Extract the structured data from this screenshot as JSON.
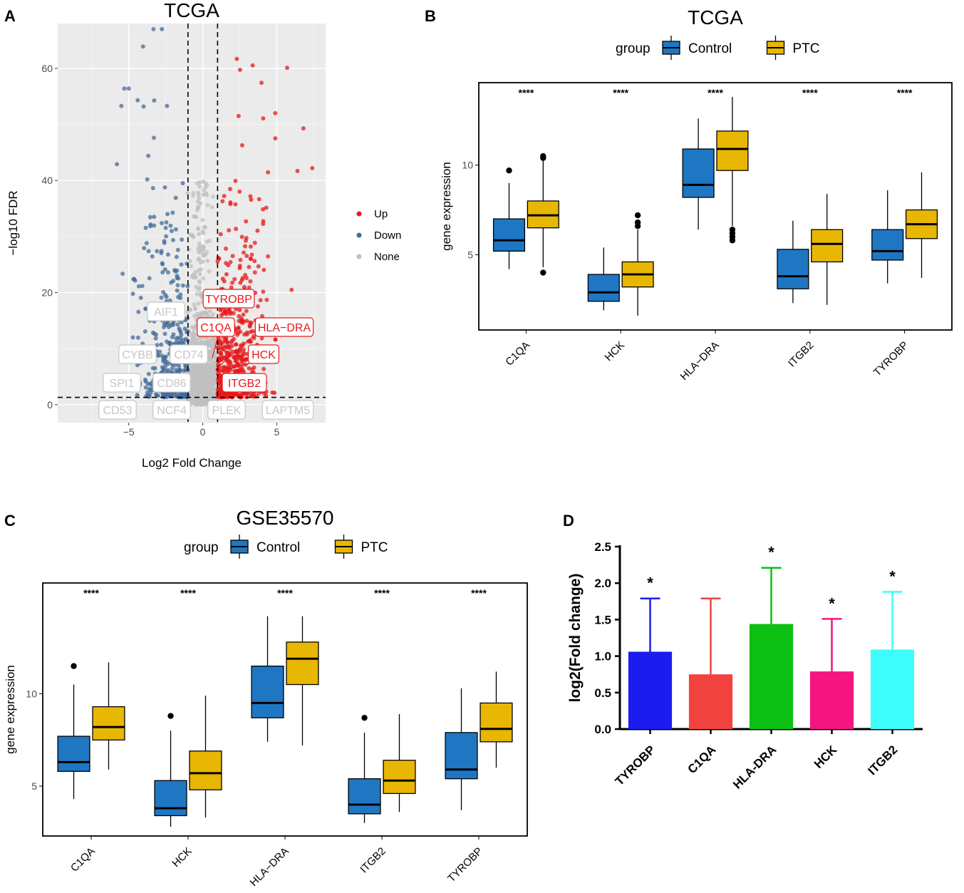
{
  "panel_labels": [
    "A",
    "B",
    "C",
    "D"
  ],
  "chart_data": [
    {
      "id": "A",
      "type": "scatter",
      "title": "TCGA",
      "xlabel": "Log2 Fold Change",
      "ylabel": "−log10 FDR",
      "xlim": [
        -9.8,
        8.3
      ],
      "ylim": [
        -3.2,
        68
      ],
      "xticks": [
        -5,
        0,
        5
      ],
      "xtick_labels": [
        "−5",
        "0",
        "5"
      ],
      "yticks": [
        0,
        20,
        40,
        60
      ],
      "fc_threshold": [
        -1,
        1
      ],
      "fdr_threshold": 1.3,
      "legend": [
        {
          "name": "Up",
          "color": "#e8191b"
        },
        {
          "name": "Down",
          "color": "#466b99"
        },
        {
          "name": "None",
          "color": "#c0c0c0"
        }
      ],
      "highlighted_points": [
        {
          "x": 2.3,
          "y": 61.7,
          "group": "Up"
        },
        {
          "x": 5.7,
          "y": 60.1,
          "group": "Up"
        },
        {
          "x": 4.9,
          "y": 52.0,
          "group": "Up"
        },
        {
          "x": 6.8,
          "y": 49.3,
          "group": "Up"
        },
        {
          "x": 7.4,
          "y": 42.2,
          "group": "Up"
        },
        {
          "x": 6.4,
          "y": 41.7,
          "group": "Up"
        },
        {
          "x": 6.0,
          "y": 20.5,
          "group": "Up"
        },
        {
          "x": -5.3,
          "y": 56.4,
          "group": "Down"
        },
        {
          "x": -5.0,
          "y": 56.4,
          "group": "Down"
        },
        {
          "x": -5.5,
          "y": 53.3,
          "group": "Down"
        },
        {
          "x": -4.4,
          "y": 54.3,
          "group": "Down"
        },
        {
          "x": -4.0,
          "y": 53.2,
          "group": "Down"
        },
        {
          "x": -5.8,
          "y": 42.9,
          "group": "Down"
        },
        {
          "x": -3.3,
          "y": 47.6,
          "group": "Down"
        }
      ],
      "labels": [
        {
          "text": "TYROBP",
          "group": "Up"
        },
        {
          "text": "C1QA",
          "group": "Up"
        },
        {
          "text": "HLA−DRA",
          "group": "Up"
        },
        {
          "text": "HCK",
          "group": "Up"
        },
        {
          "text": "ITGB2",
          "group": "Up"
        },
        {
          "text": "AIF1",
          "group": "None"
        },
        {
          "text": "CYBB",
          "group": "None"
        },
        {
          "text": "CD74",
          "group": "None"
        },
        {
          "text": "SPI1",
          "group": "None"
        },
        {
          "text": "CD86",
          "group": "None"
        },
        {
          "text": "CD53",
          "group": "None"
        },
        {
          "text": "NCF4",
          "group": "None"
        },
        {
          "text": "PLEK",
          "group": "None"
        },
        {
          "text": "LAPTM5",
          "group": "None"
        }
      ]
    },
    {
      "id": "B",
      "type": "box",
      "title": "TCGA",
      "xlabel": "",
      "ylabel": "gene expression",
      "ylim": [
        0.8,
        14.6
      ],
      "yticks": [
        5,
        10
      ],
      "legend_title": "group",
      "categories": [
        "C1QA",
        "HCK",
        "HLA−DRA",
        "ITGB2",
        "TYROBP"
      ],
      "significance": [
        "****",
        "****",
        "****",
        "****",
        "****"
      ],
      "series": [
        {
          "name": "Control",
          "color": "#1f77c4",
          "boxes": [
            {
              "min": 4.2,
              "q1": 5.2,
              "median": 5.8,
              "q3": 7.0,
              "max": 9.0,
              "outliers": [
                9.7
              ]
            },
            {
              "min": 1.9,
              "q1": 2.4,
              "median": 2.9,
              "q3": 3.9,
              "max": 5.4,
              "outliers": []
            },
            {
              "min": 6.4,
              "q1": 8.2,
              "median": 8.9,
              "q3": 10.9,
              "max": 12.6,
              "outliers": []
            },
            {
              "min": 2.3,
              "q1": 3.1,
              "median": 3.8,
              "q3": 5.3,
              "max": 6.9,
              "outliers": []
            },
            {
              "min": 3.4,
              "q1": 4.7,
              "median": 5.2,
              "q3": 6.4,
              "max": 8.6,
              "outliers": []
            }
          ]
        },
        {
          "name": "PTC",
          "color": "#e8b703",
          "boxes": [
            {
              "min": 4.3,
              "q1": 6.5,
              "median": 7.2,
              "q3": 8.0,
              "max": 10.3,
              "outliers": [
                10.4,
                10.5,
                4.0
              ]
            },
            {
              "min": 1.6,
              "q1": 3.2,
              "median": 3.9,
              "q3": 4.6,
              "max": 6.4,
              "outliers": [
                6.6,
                6.8,
                7.2
              ]
            },
            {
              "min": 6.6,
              "q1": 9.7,
              "median": 10.9,
              "q3": 11.9,
              "max": 13.8,
              "outliers": [
                6.4,
                6.2,
                6.0,
                5.8
              ]
            },
            {
              "min": 2.2,
              "q1": 4.6,
              "median": 5.6,
              "q3": 6.4,
              "max": 8.4,
              "outliers": []
            },
            {
              "min": 3.7,
              "q1": 5.9,
              "median": 6.7,
              "q3": 7.5,
              "max": 9.6,
              "outliers": []
            }
          ]
        }
      ]
    },
    {
      "id": "C",
      "type": "box",
      "title": "GSE35570",
      "xlabel": "",
      "ylabel": "gene expression",
      "ylim": [
        2.3,
        16.0
      ],
      "yticks": [
        5,
        10
      ],
      "legend_title": "group",
      "categories": [
        "C1QA",
        "HCK",
        "HLA−DRA",
        "ITGB2",
        "TYROBP"
      ],
      "significance": [
        "****",
        "****",
        "****",
        "****",
        "****"
      ],
      "series": [
        {
          "name": "Control",
          "color": "#1f77c4",
          "boxes": [
            {
              "min": 4.3,
              "q1": 5.8,
              "median": 6.3,
              "q3": 7.7,
              "max": 10.5,
              "outliers": [
                11.5
              ]
            },
            {
              "min": 2.8,
              "q1": 3.4,
              "median": 3.8,
              "q3": 5.3,
              "max": 8.0,
              "outliers": [
                8.8
              ]
            },
            {
              "min": 7.4,
              "q1": 8.7,
              "median": 9.5,
              "q3": 11.5,
              "max": 14.2,
              "outliers": []
            },
            {
              "min": 3.0,
              "q1": 3.5,
              "median": 4.0,
              "q3": 5.4,
              "max": 7.9,
              "outliers": [
                8.7
              ]
            },
            {
              "min": 3.7,
              "q1": 5.4,
              "median": 5.9,
              "q3": 7.9,
              "max": 10.3,
              "outliers": []
            }
          ]
        },
        {
          "name": "PTC",
          "color": "#e8b703",
          "boxes": [
            {
              "min": 5.9,
              "q1": 7.5,
              "median": 8.2,
              "q3": 9.3,
              "max": 11.7,
              "outliers": []
            },
            {
              "min": 3.3,
              "q1": 4.8,
              "median": 5.7,
              "q3": 6.9,
              "max": 9.9,
              "outliers": []
            },
            {
              "min": 7.2,
              "q1": 10.5,
              "median": 11.9,
              "q3": 12.8,
              "max": 14.2,
              "outliers": []
            },
            {
              "min": 3.6,
              "q1": 4.6,
              "median": 5.3,
              "q3": 6.4,
              "max": 8.9,
              "outliers": []
            },
            {
              "min": 6.0,
              "q1": 7.4,
              "median": 8.1,
              "q3": 9.5,
              "max": 11.2,
              "outliers": []
            }
          ]
        }
      ]
    },
    {
      "id": "D",
      "type": "bar",
      "title": "",
      "xlabel": "",
      "ylabel": "log2(Fold change)",
      "ylim": [
        0,
        2.5
      ],
      "yticks": [
        0.0,
        0.5,
        1.0,
        1.5,
        2.0,
        2.5
      ],
      "ytick_labels": [
        "0.0",
        "0.5",
        "1.0",
        "1.5",
        "2.0",
        "2.5"
      ],
      "categories": [
        "TYROBP",
        "C1QA",
        "HLA-DRA",
        "HCK",
        "ITGB2"
      ],
      "values": [
        1.06,
        0.75,
        1.44,
        0.79,
        1.09
      ],
      "errors": [
        0.73,
        1.04,
        0.77,
        0.72,
        0.79
      ],
      "significance": [
        "*",
        "",
        "*",
        "*",
        "*"
      ],
      "colors": [
        "#1c1cf0",
        "#f2423f",
        "#0bbf13",
        "#f4157f",
        "#3ffcfc"
      ]
    }
  ]
}
